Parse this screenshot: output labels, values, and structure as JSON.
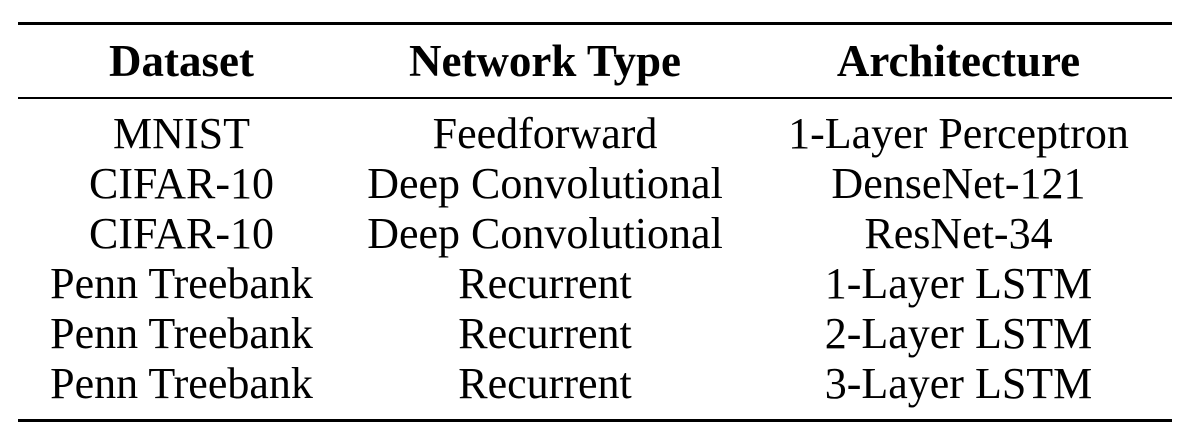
{
  "table": {
    "headers": [
      "Dataset",
      "Network Type",
      "Architecture"
    ],
    "rows": [
      [
        "MNIST",
        "Feedforward",
        "1-Layer Perceptron"
      ],
      [
        "CIFAR-10",
        "Deep Convolutional",
        "DenseNet-121"
      ],
      [
        "CIFAR-10",
        "Deep Convolutional",
        "ResNet-34"
      ],
      [
        "Penn Treebank",
        "Recurrent",
        "1-Layer LSTM"
      ],
      [
        "Penn Treebank",
        "Recurrent",
        "2-Layer LSTM"
      ],
      [
        "Penn Treebank",
        "Recurrent",
        "3-Layer LSTM"
      ]
    ]
  }
}
